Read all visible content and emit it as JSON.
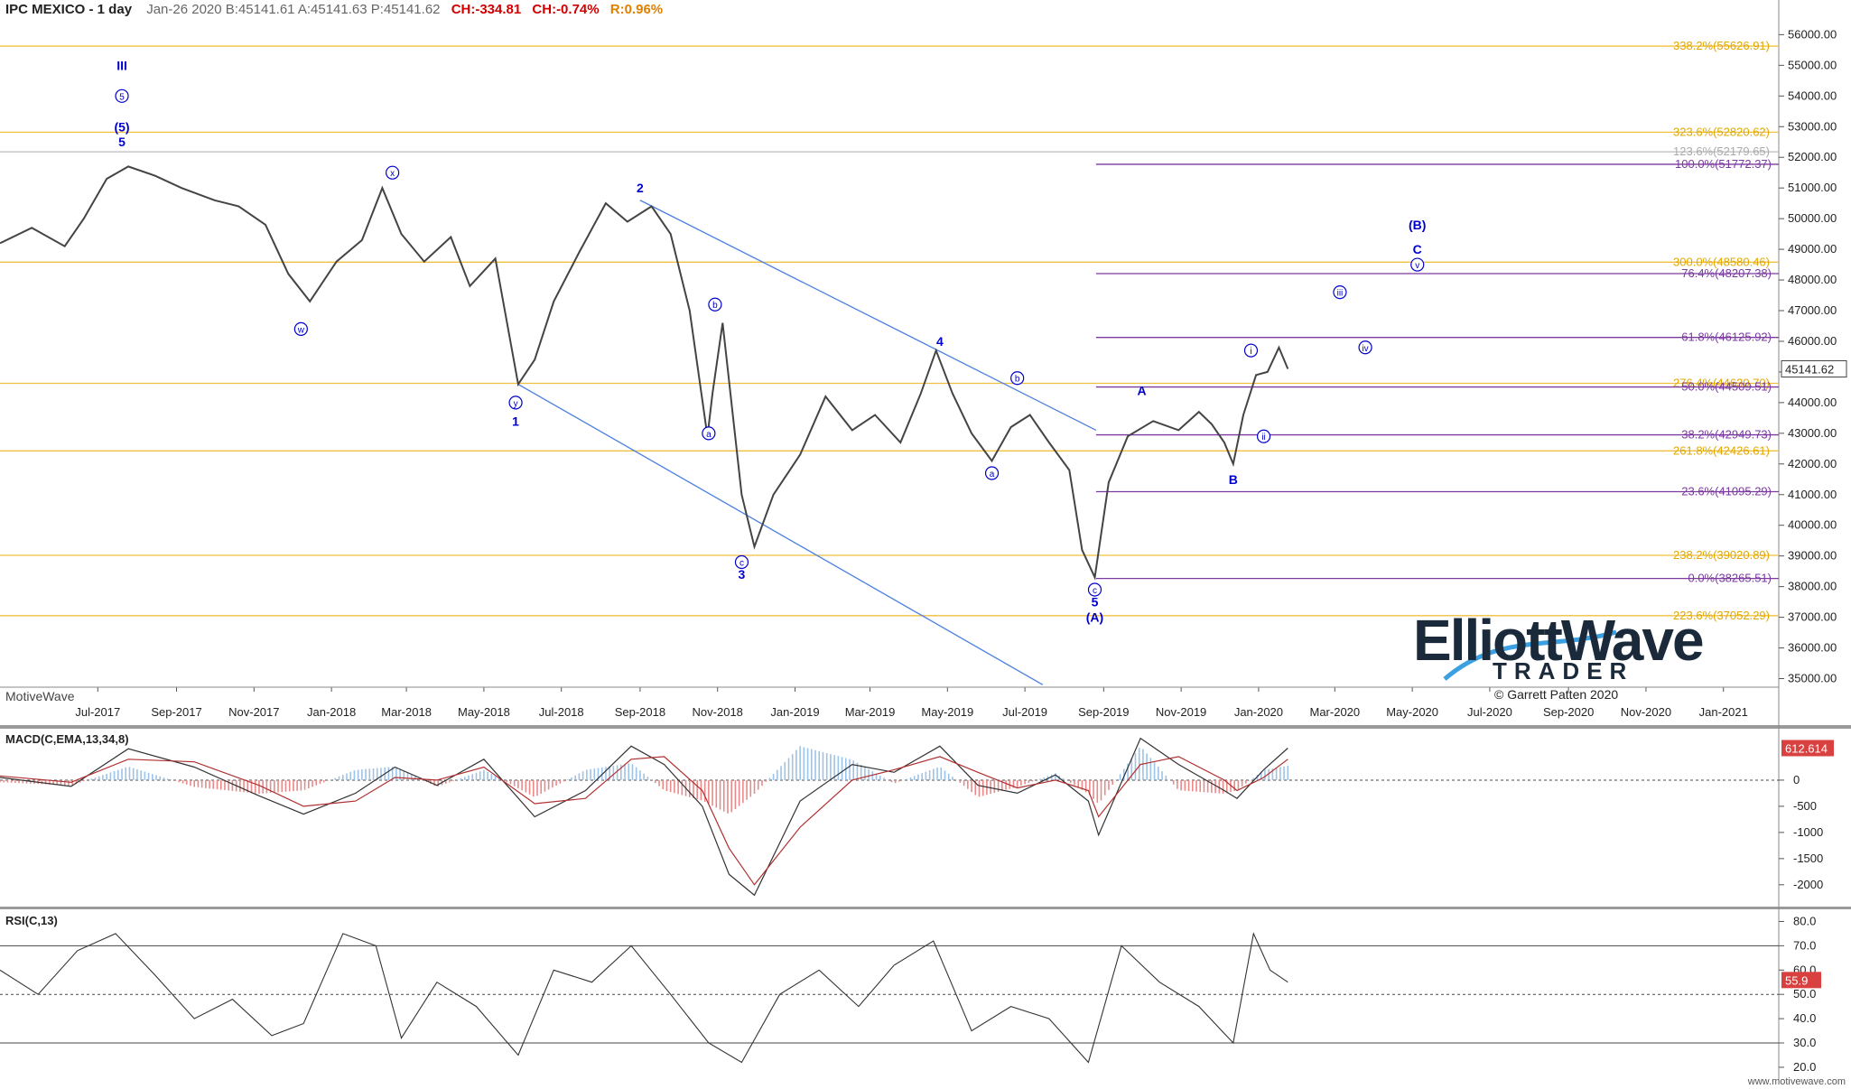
{
  "header": {
    "title": "IPC MEXICO - 1 day",
    "info": "Jan-26 2020  B:45141.61  A:45141.63  P:45141.62",
    "ch": "CH:-334.81",
    "chpct": "CH:-0.74%",
    "range": "R:0.96%"
  },
  "watermark": "MotiveWave",
  "footer": "www.motivewave.com",
  "logo": {
    "line1": "ElliottWave",
    "line2": "TRADER",
    "copyright": "© Garrett Patten 2020"
  },
  "colors": {
    "price": "#444444",
    "fib_gold": "#f0c040",
    "fib_purple": "#7a3aa0",
    "wave_blue": "#0000cc",
    "trend": "#4a7fe0"
  },
  "chart_data": [
    {
      "type": "line",
      "panel": "price",
      "yaxis_ticks": [
        "56000.00",
        "55000.00",
        "54000.00",
        "53000.00",
        "52000.00",
        "51000.00",
        "50000.00",
        "49000.00",
        "48000.00",
        "47000.00",
        "46000.00",
        "45000.00",
        "44000.00",
        "43000.00",
        "42000.00",
        "41000.00",
        "40000.00",
        "39000.00",
        "38000.00",
        "37000.00",
        "36000.00",
        "35000.00"
      ],
      "ylim": [
        34750,
        56600
      ],
      "xaxis_ticks": [
        "Jul-2017",
        "Sep-2017",
        "Nov-2017",
        "Jan-2018",
        "Mar-2018",
        "May-2018",
        "Jul-2018",
        "Sep-2018",
        "Nov-2018",
        "Jan-2019",
        "Mar-2019",
        "May-2019",
        "Jul-2019",
        "Sep-2019",
        "Nov-2019",
        "Jan-2020",
        "Mar-2020",
        "May-2020",
        "Jul-2020",
        "Sep-2020",
        "Nov-2020",
        "Jan-2021"
      ],
      "last_price_label": "45141.62",
      "series": [
        {
          "x": [
            "2017-04-15",
            "2017-05-10",
            "2017-06-05",
            "2017-06-20",
            "2017-07-08",
            "2017-07-25",
            "2017-08-15",
            "2017-09-05",
            "2017-10-01",
            "2017-10-20",
            "2017-11-10",
            "2017-11-28",
            "2017-12-15",
            "2018-01-05",
            "2018-01-25",
            "2018-02-10",
            "2018-02-25",
            "2018-03-15",
            "2018-04-05",
            "2018-04-20",
            "2018-05-10",
            "2018-05-28",
            "2018-06-10",
            "2018-06-25",
            "2018-07-15",
            "2018-08-05",
            "2018-08-22",
            "2018-09-10",
            "2018-09-25",
            "2018-10-10",
            "2018-10-24",
            "2018-10-28",
            "2018-11-05",
            "2018-11-20",
            "2018-11-30",
            "2018-12-15",
            "2019-01-05",
            "2019-01-25",
            "2019-02-15",
            "2019-03-05",
            "2019-03-25",
            "2019-04-10",
            "2019-04-22",
            "2019-05-05",
            "2019-05-20",
            "2019-06-05",
            "2019-06-20",
            "2019-07-05",
            "2019-07-20",
            "2019-08-05",
            "2019-08-15",
            "2019-08-25",
            "2019-09-05",
            "2019-09-20",
            "2019-10-10",
            "2019-10-30",
            "2019-11-15",
            "2019-11-25",
            "2019-12-05",
            "2019-12-12",
            "2019-12-20",
            "2019-12-30",
            "2020-01-08",
            "2020-01-17",
            "2020-01-24"
          ],
          "values": [
            49200,
            49700,
            49100,
            50000,
            51300,
            51700,
            51400,
            51000,
            50600,
            50400,
            49800,
            48200,
            47300,
            48600,
            49300,
            51000,
            49500,
            48600,
            49400,
            47800,
            48700,
            44600,
            45400,
            47300,
            48900,
            50500,
            49900,
            50400,
            49500,
            47000,
            42900,
            44300,
            46600,
            41000,
            39300,
            41000,
            42300,
            44200,
            43100,
            43600,
            42700,
            44300,
            45700,
            44300,
            43000,
            42100,
            43200,
            43600,
            42700,
            41800,
            39200,
            38300,
            41400,
            42900,
            43400,
            43100,
            43700,
            43300,
            42700,
            42000,
            43600,
            44900,
            45000,
            45800,
            45100
          ]
        }
      ],
      "fib_gold": [
        {
          "label": "338.2%(55626.91)",
          "value": 55626.91
        },
        {
          "label": "323.6%(52820.62)",
          "value": 52820.62
        },
        {
          "label": "123.6%(52179.65)",
          "value": 52179.65
        },
        {
          "label": "300.0%(48580.46)",
          "value": 48580.46
        },
        {
          "label": "276.4%(44630.70)",
          "value": 44630.7
        },
        {
          "label": "261.8%(42426.61)",
          "value": 42426.61
        },
        {
          "label": "238.2%(39020.89)",
          "value": 39020.89
        },
        {
          "label": "223.6%(37052.29)",
          "value": 37052.29
        }
      ],
      "fib_purple": [
        {
          "label": "100.0%(51772.37)",
          "value": 51772.37
        },
        {
          "label": "76.4%(48207.38)",
          "value": 48207.38
        },
        {
          "label": "61.8%(46125.92)",
          "value": 46125.92
        },
        {
          "label": "50.0%(44509.51)",
          "value": 44509.51
        },
        {
          "label": "38.2%(42949.73)",
          "value": 42949.73
        },
        {
          "label": "23.6%(41095.29)",
          "value": 41095.29
        },
        {
          "label": "0.0%(38265.51)",
          "value": 38265.51
        }
      ],
      "trendlines": [
        {
          "from": [
            "2018-05-28",
            44600
          ],
          "to": [
            "2019-07-15",
            34800
          ]
        },
        {
          "from": [
            "2018-09-01",
            50600
          ],
          "to": [
            "2019-08-26",
            43100
          ]
        }
      ],
      "wave_labels": [
        {
          "text": "III",
          "x": "2017-07-20",
          "y": 55000,
          "circled": false
        },
        {
          "text": "5",
          "x": "2017-07-20",
          "y": 54000,
          "circled": true
        },
        {
          "text": "(5)",
          "x": "2017-07-20",
          "y": 53000,
          "circled": false
        },
        {
          "text": "5",
          "x": "2017-07-20",
          "y": 52500,
          "circled": false
        },
        {
          "text": "w",
          "x": "2017-12-08",
          "y": 46400,
          "circled": true
        },
        {
          "text": "x",
          "x": "2018-02-18",
          "y": 51500,
          "circled": true
        },
        {
          "text": "y",
          "x": "2018-05-26",
          "y": 44000,
          "circled": true
        },
        {
          "text": "1",
          "x": "2018-05-26",
          "y": 43400,
          "circled": false
        },
        {
          "text": "2",
          "x": "2018-09-01",
          "y": 51000,
          "circled": false
        },
        {
          "text": "b",
          "x": "2018-10-30",
          "y": 47200,
          "circled": true
        },
        {
          "text": "a",
          "x": "2018-10-25",
          "y": 43000,
          "circled": true
        },
        {
          "text": "c",
          "x": "2018-11-20",
          "y": 38800,
          "circled": true
        },
        {
          "text": "3",
          "x": "2018-11-20",
          "y": 38400,
          "circled": false
        },
        {
          "text": "4",
          "x": "2019-04-25",
          "y": 46000,
          "circled": false
        },
        {
          "text": "b",
          "x": "2019-06-25",
          "y": 44800,
          "circled": true
        },
        {
          "text": "a",
          "x": "2019-06-05",
          "y": 41700,
          "circled": true
        },
        {
          "text": "c",
          "x": "2019-08-25",
          "y": 37900,
          "circled": true
        },
        {
          "text": "5",
          "x": "2019-08-25",
          "y": 37500,
          "circled": false
        },
        {
          "text": "(A)",
          "x": "2019-08-25",
          "y": 37000,
          "circled": false
        },
        {
          "text": "A",
          "x": "2019-10-01",
          "y": 44400,
          "circled": false
        },
        {
          "text": "B",
          "x": "2019-12-12",
          "y": 41500,
          "circled": false
        },
        {
          "text": "i",
          "x": "2019-12-26",
          "y": 45700,
          "circled": true
        },
        {
          "text": "ii",
          "x": "2020-01-05",
          "y": 42900,
          "circled": true
        },
        {
          "text": "iii",
          "x": "2020-03-05",
          "y": 47600,
          "circled": true
        },
        {
          "text": "iv",
          "x": "2020-03-25",
          "y": 45800,
          "circled": true
        },
        {
          "text": "(B)",
          "x": "2020-05-05",
          "y": 49800,
          "circled": false
        },
        {
          "text": "C",
          "x": "2020-05-05",
          "y": 49000,
          "circled": false
        },
        {
          "text": "v",
          "x": "2020-05-05",
          "y": 48500,
          "circled": true
        }
      ]
    },
    {
      "type": "line",
      "panel": "macd",
      "title": "MACD(C,EMA,13,34,8)",
      "yaxis_ticks": [
        "0",
        "-500",
        "-1000",
        "-1500",
        "-2000"
      ],
      "ylim": [
        -2400,
        1000
      ],
      "last_value_label": "612.614",
      "series": [
        {
          "name": "MACD",
          "x": [
            "2017-04-15",
            "2017-06-10",
            "2017-07-25",
            "2017-09-15",
            "2017-11-05",
            "2017-12-10",
            "2018-01-20",
            "2018-02-20",
            "2018-03-25",
            "2018-05-01",
            "2018-06-10",
            "2018-07-20",
            "2018-08-25",
            "2018-09-20",
            "2018-10-20",
            "2018-11-10",
            "2018-11-30",
            "2019-01-05",
            "2019-02-15",
            "2019-03-20",
            "2019-04-25",
            "2019-05-25",
            "2019-06-25",
            "2019-07-25",
            "2019-08-20",
            "2019-08-28",
            "2019-09-30",
            "2019-10-30",
            "2019-12-05",
            "2019-12-15",
            "2020-01-05",
            "2020-01-24"
          ],
          "values": [
            50,
            -120,
            600,
            250,
            -300,
            -650,
            -250,
            250,
            -100,
            400,
            -700,
            -200,
            650,
            300,
            -500,
            -1800,
            -2200,
            -400,
            300,
            150,
            650,
            -100,
            -250,
            100,
            -400,
            -1050,
            800,
            300,
            -200,
            -350,
            200,
            612
          ]
        },
        {
          "name": "Signal",
          "x": [
            "2017-04-15",
            "2017-06-10",
            "2017-07-25",
            "2017-09-15",
            "2017-11-05",
            "2017-12-10",
            "2018-01-20",
            "2018-02-20",
            "2018-03-25",
            "2018-05-01",
            "2018-06-10",
            "2018-07-20",
            "2018-08-25",
            "2018-09-20",
            "2018-10-20",
            "2018-11-10",
            "2018-11-30",
            "2019-01-05",
            "2019-02-15",
            "2019-03-20",
            "2019-04-25",
            "2019-05-25",
            "2019-06-25",
            "2019-07-25",
            "2019-08-20",
            "2019-08-28",
            "2019-09-30",
            "2019-10-30",
            "2019-12-05",
            "2019-12-15",
            "2020-01-05",
            "2020-01-24"
          ],
          "values": [
            80,
            -40,
            400,
            350,
            -100,
            -500,
            -400,
            50,
            0,
            250,
            -450,
            -350,
            400,
            450,
            -200,
            -1300,
            -2000,
            -900,
            0,
            200,
            450,
            150,
            -150,
            0,
            -200,
            -700,
            300,
            450,
            0,
            -200,
            50,
            400
          ]
        }
      ]
    },
    {
      "type": "line",
      "panel": "rsi",
      "title": "RSI(C,13)",
      "yaxis_ticks": [
        "80.0",
        "70.0",
        "60.0",
        "50.0",
        "40.0",
        "30.0",
        "20.0"
      ],
      "ylim": [
        17,
        85
      ],
      "last_value_label": "55.9",
      "series": [
        {
          "name": "RSI",
          "x": [
            "2017-04-15",
            "2017-05-15",
            "2017-06-15",
            "2017-07-15",
            "2017-08-15",
            "2017-09-15",
            "2017-10-15",
            "2017-11-15",
            "2017-12-10",
            "2018-01-10",
            "2018-02-05",
            "2018-02-25",
            "2018-03-25",
            "2018-04-25",
            "2018-05-28",
            "2018-06-25",
            "2018-07-25",
            "2018-08-25",
            "2018-09-25",
            "2018-10-25",
            "2018-11-20",
            "2018-12-20",
            "2019-01-20",
            "2019-02-20",
            "2019-03-20",
            "2019-04-20",
            "2019-05-20",
            "2019-06-20",
            "2019-07-20",
            "2019-08-20",
            "2019-09-15",
            "2019-10-15",
            "2019-11-15",
            "2019-12-12",
            "2019-12-28",
            "2020-01-10",
            "2020-01-24"
          ],
          "values": [
            60,
            50,
            68,
            75,
            58,
            40,
            48,
            33,
            38,
            75,
            70,
            32,
            55,
            45,
            25,
            60,
            55,
            70,
            50,
            30,
            22,
            50,
            60,
            45,
            62,
            72,
            35,
            45,
            40,
            22,
            70,
            55,
            45,
            30,
            75,
            60,
            55
          ]
        }
      ]
    }
  ]
}
